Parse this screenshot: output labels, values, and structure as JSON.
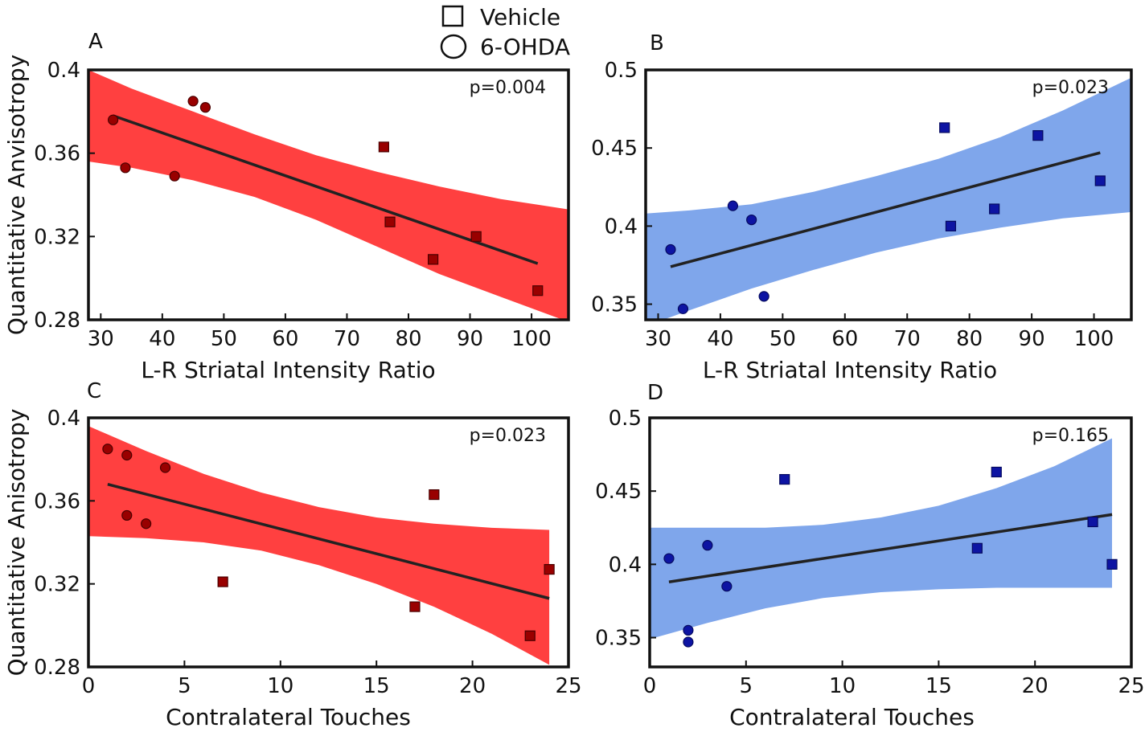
{
  "legend": {
    "items": [
      {
        "label": "Vehicle",
        "marker": "square"
      },
      {
        "label": "6-OHDA",
        "marker": "circle"
      }
    ]
  },
  "chart_data": [
    {
      "type": "scatter",
      "panel": "A",
      "annotation": "p=0.004",
      "xlabel": "L-R Striatal Intensity Ratio",
      "ylabel": "Quantitative Anvisotropy",
      "xlim": [
        28,
        106
      ],
      "ylim": [
        0.28,
        0.4
      ],
      "xticks": [
        30,
        40,
        50,
        60,
        70,
        80,
        90,
        100
      ],
      "yticks": [
        0.28,
        0.32,
        0.36,
        0.4
      ],
      "ytick_labels": [
        "0.28",
        "0.32",
        "0.36",
        "0.4"
      ],
      "colors": {
        "band": "#ff4040",
        "marker": "#990000",
        "marker_stroke": "#4a0000"
      },
      "series": [
        {
          "name": "6-OHDA",
          "marker": "circle",
          "x": [
            32,
            34,
            42,
            45,
            47
          ],
          "y": [
            0.376,
            0.353,
            0.349,
            0.385,
            0.382
          ]
        },
        {
          "name": "Vehicle",
          "marker": "square",
          "x": [
            76,
            77,
            84,
            91,
            101
          ],
          "y": [
            0.363,
            0.327,
            0.309,
            0.32,
            0.294
          ]
        }
      ],
      "fit": {
        "x": [
          32,
          101
        ],
        "y": [
          0.378,
          0.307
        ]
      },
      "band_x": [
        28,
        35,
        45,
        55,
        65,
        75,
        85,
        95,
        106
      ],
      "band_upper": [
        0.4,
        0.391,
        0.38,
        0.369,
        0.359,
        0.351,
        0.344,
        0.338,
        0.333
      ],
      "band_lower": [
        0.356,
        0.353,
        0.347,
        0.339,
        0.328,
        0.315,
        0.302,
        0.291,
        0.279
      ]
    },
    {
      "type": "scatter",
      "panel": "B",
      "annotation": "p=0.023",
      "xlabel": "L-R Striatal Intensity Ratio",
      "ylabel": "",
      "xlim": [
        28,
        106
      ],
      "ylim": [
        0.34,
        0.5
      ],
      "xticks": [
        30,
        40,
        50,
        60,
        70,
        80,
        90,
        100
      ],
      "yticks": [
        0.35,
        0.4,
        0.45,
        0.5
      ],
      "ytick_labels": [
        "0.35",
        "0.4",
        "0.45",
        "0.5"
      ],
      "colors": {
        "band": "#7fa6eb",
        "marker": "#0d14a3",
        "marker_stroke": "#050a60"
      },
      "series": [
        {
          "name": "6-OHDA",
          "marker": "circle",
          "x": [
            32,
            34,
            42,
            45,
            47
          ],
          "y": [
            0.385,
            0.347,
            0.413,
            0.404,
            0.355
          ]
        },
        {
          "name": "Vehicle",
          "marker": "square",
          "x": [
            76,
            77,
            84,
            91,
            101
          ],
          "y": [
            0.463,
            0.4,
            0.411,
            0.458,
            0.429
          ]
        }
      ],
      "fit": {
        "x": [
          32,
          101
        ],
        "y": [
          0.374,
          0.447
        ]
      },
      "band_x": [
        28,
        35,
        45,
        55,
        65,
        75,
        85,
        95,
        106
      ],
      "band_upper": [
        0.408,
        0.41,
        0.414,
        0.422,
        0.432,
        0.443,
        0.457,
        0.474,
        0.495
      ],
      "band_lower": [
        0.336,
        0.346,
        0.36,
        0.372,
        0.383,
        0.392,
        0.399,
        0.405,
        0.409
      ]
    },
    {
      "type": "scatter",
      "panel": "C",
      "annotation": "p=0.023",
      "xlabel": "Contralateral Touches",
      "ylabel": "Quantitative Anisotropy",
      "xlim": [
        0,
        25
      ],
      "ylim": [
        0.28,
        0.4
      ],
      "xticks": [
        0,
        5,
        10,
        15,
        20,
        25
      ],
      "yticks": [
        0.28,
        0.32,
        0.36,
        0.4
      ],
      "ytick_labels": [
        "0.28",
        "0.32",
        "0.36",
        "0.4"
      ],
      "colors": {
        "band": "#ff4040",
        "marker": "#990000",
        "marker_stroke": "#4a0000"
      },
      "series": [
        {
          "name": "6-OHDA",
          "marker": "circle",
          "x": [
            1,
            2,
            2,
            3,
            4
          ],
          "y": [
            0.385,
            0.382,
            0.353,
            0.349,
            0.376
          ]
        },
        {
          "name": "Vehicle",
          "marker": "square",
          "x": [
            7,
            17,
            18,
            23,
            24
          ],
          "y": [
            0.321,
            0.309,
            0.363,
            0.295,
            0.327
          ]
        }
      ],
      "fit": {
        "x": [
          1,
          24
        ],
        "y": [
          0.368,
          0.313
        ]
      },
      "band_x": [
        0,
        3,
        6,
        9,
        12,
        15,
        18,
        21,
        24
      ],
      "band_upper": [
        0.396,
        0.384,
        0.373,
        0.364,
        0.357,
        0.352,
        0.349,
        0.347,
        0.346
      ],
      "band_lower": [
        0.343,
        0.342,
        0.34,
        0.336,
        0.329,
        0.32,
        0.309,
        0.296,
        0.281
      ]
    },
    {
      "type": "scatter",
      "panel": "D",
      "annotation": "p=0.165",
      "xlabel": "Contralateral Touches",
      "ylabel": "",
      "xlim": [
        0,
        25
      ],
      "ylim": [
        0.33,
        0.5
      ],
      "xticks": [
        0,
        5,
        10,
        15,
        20,
        25
      ],
      "yticks": [
        0.35,
        0.4,
        0.45,
        0.5
      ],
      "ytick_labels": [
        "0.35",
        "0.4",
        "0.45",
        "0.5"
      ],
      "colors": {
        "band": "#7fa6eb",
        "marker": "#0d14a3",
        "marker_stroke": "#050a60"
      },
      "series": [
        {
          "name": "6-OHDA",
          "marker": "circle",
          "x": [
            1,
            2,
            2,
            3,
            4
          ],
          "y": [
            0.404,
            0.355,
            0.347,
            0.413,
            0.385
          ]
        },
        {
          "name": "Vehicle",
          "marker": "square",
          "x": [
            7,
            17,
            18,
            23,
            24
          ],
          "y": [
            0.458,
            0.411,
            0.463,
            0.429,
            0.4
          ]
        }
      ],
      "fit": {
        "x": [
          1,
          24
        ],
        "y": [
          0.388,
          0.434
        ]
      },
      "band_x": [
        0,
        3,
        6,
        9,
        12,
        15,
        18,
        21,
        24
      ],
      "band_upper": [
        0.425,
        0.425,
        0.425,
        0.427,
        0.432,
        0.44,
        0.452,
        0.467,
        0.486
      ],
      "band_lower": [
        0.349,
        0.36,
        0.37,
        0.377,
        0.381,
        0.383,
        0.384,
        0.384,
        0.384
      ]
    }
  ]
}
